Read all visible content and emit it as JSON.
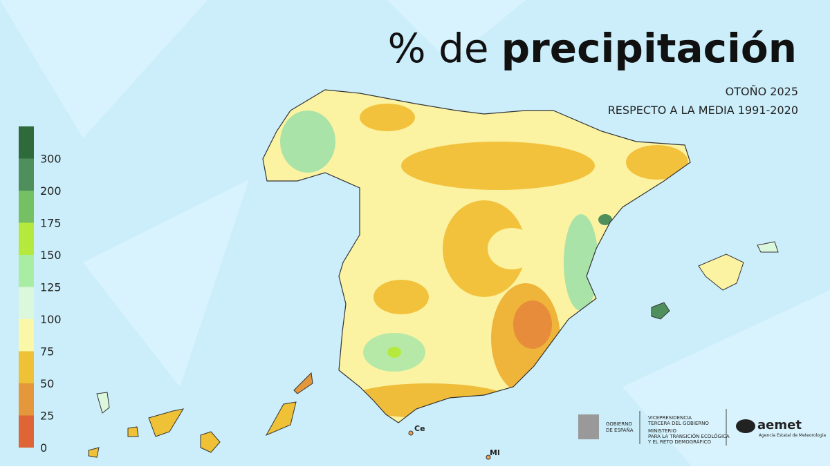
{
  "header": {
    "title_light": "% de",
    "title_bold": "precipitación",
    "subtitle": [
      "OTOÑO 2025",
      "RESPECTO A LA MEDIA 1991-2020"
    ]
  },
  "legend": {
    "colors": [
      "#2f6a3a",
      "#4f8f5c",
      "#74c062",
      "#b6e93d",
      "#a9eca3",
      "#dcf8dc",
      "#fbf7a9",
      "#efc136",
      "#e4973b",
      "#df6436"
    ],
    "labels": [
      "300",
      "200",
      "175",
      "150",
      "125",
      "100",
      "75",
      "50",
      "25",
      "0"
    ]
  },
  "map_labels": [
    "Ce",
    "Ml"
  ],
  "footer": {
    "gobierno": [
      "GOBIERNO",
      "DE ESPAÑA"
    ],
    "vicepresidencia": [
      "VICEPRESIDENCIA",
      "TERCERA DEL GOBIERNO"
    ],
    "ministerio": [
      "MINISTERIO",
      "PARA LA TRANSICIÓN ECOLÓGICA",
      "Y EL RETO DEMOGRÁFICO"
    ],
    "aemet": "aemet",
    "agencia": "Agencia Estatal de Meteorología"
  }
}
